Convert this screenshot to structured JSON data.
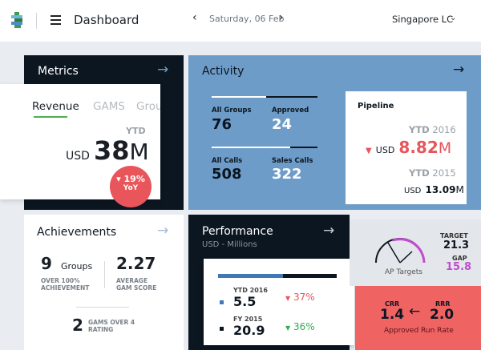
{
  "header": {
    "title": "Dashboard",
    "date": "Saturday, 06 Feb",
    "prev_icon": "‹",
    "next_icon": "›",
    "location": "Singapore LC",
    "location_chevron": "⌄"
  },
  "metrics": {
    "title": "Metrics",
    "arrow": "→",
    "tabs": [
      "Revenue",
      "GAMS",
      "Grou"
    ],
    "ytd_label": "YTD",
    "currency": "USD",
    "value": "38",
    "unit": "M",
    "yoy_value": "19%",
    "yoy_label": "YoY"
  },
  "activity": {
    "title": "Activity",
    "arrow": "→",
    "all_groups_label": "All Groups",
    "all_groups_value": "76",
    "approved_label": "Approved",
    "approved_value": "24",
    "all_calls_label": "All Calls",
    "all_calls_value": "508",
    "sales_calls_label": "Sales Calls",
    "sales_calls_value": "322"
  },
  "pipeline": {
    "title": "Pipeline",
    "ytd_label_bold": "YTD",
    "ytd_year_1": "2016",
    "currency": "USD",
    "value_1": "8.82",
    "unit_1": "M",
    "ytd_year_2": "2015",
    "value_2": "13.09",
    "unit_2": "M"
  },
  "achievements": {
    "title": "Achievements",
    "arrow": "→",
    "groups_value": "9",
    "groups_label": "Groups",
    "groups_sub": "OVER 100% ACHIEVEMENT",
    "gam_score_value": "2.27",
    "gam_score_sub": "AVERAGE GAM SCORE",
    "gams_value": "2",
    "gams_sub": "GAMS OVER 4 RATING"
  },
  "performance": {
    "title": "Performance",
    "subtitle": "USD - Millions",
    "arrow": "→",
    "progress": 0.55,
    "ytd_label": "YTD 2016",
    "ytd_value": "5.5",
    "ytd_change": "37%",
    "fy_label": "FY 2015",
    "fy_value": "20.9",
    "fy_change": "36%"
  },
  "targets": {
    "target_label": "TARGET",
    "target_value": "21.3",
    "gap_label": "GAP",
    "gap_value": "15.8",
    "gauge_label": "AP Targets",
    "crr_label": "CRR",
    "crr_value": "1.4",
    "rrr_label": "RRR",
    "rrr_value": "2.0",
    "run_rate_label": "Approved Run Rate"
  },
  "colors": {
    "dark": "#0c1620",
    "blue": "#6e9cc8",
    "red": "#e8555a",
    "green": "#34a853",
    "magenta": "#c24bd1"
  }
}
